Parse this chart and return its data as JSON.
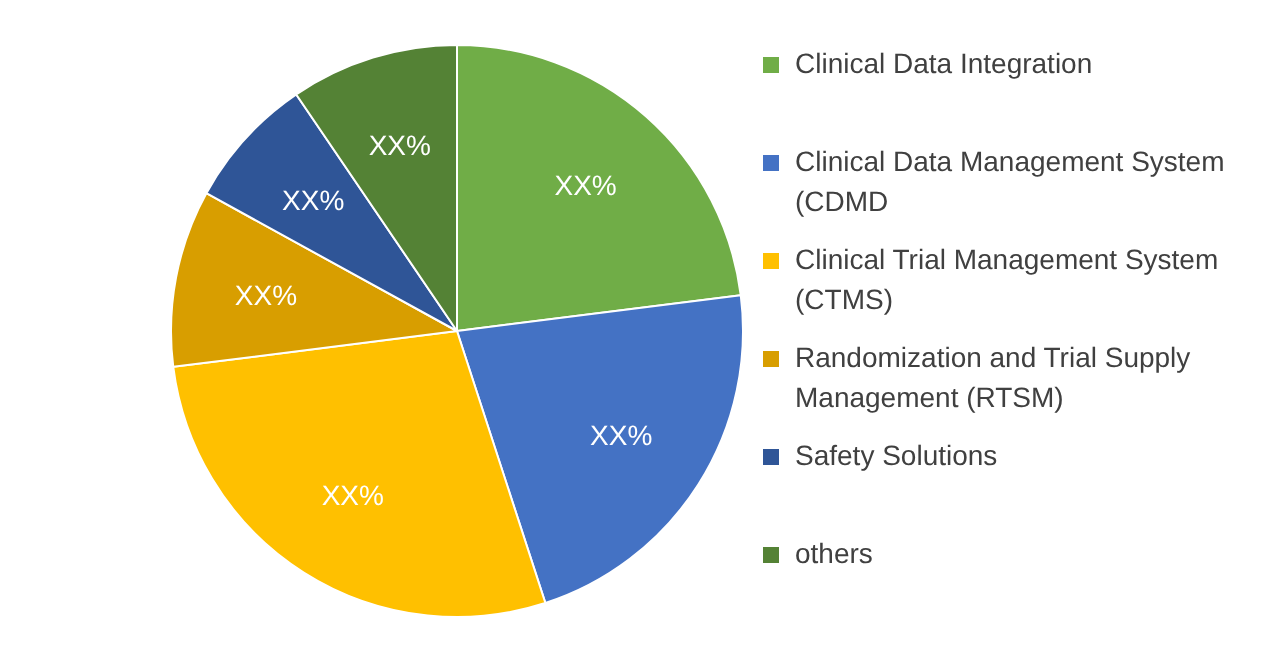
{
  "chart_data": {
    "type": "pie",
    "categories": [
      "Clinical Data Integration",
      "Clinical Data Management System (CDMD",
      "Clinical Trial Management System (CTMS)",
      "Randomization and Trial Supply Management (RTSM)",
      "Safety Solutions",
      "others"
    ],
    "values": [
      23,
      22,
      28,
      10,
      7.5,
      9.5
    ],
    "colors": [
      "#70ad47",
      "#4472c4",
      "#ffc000",
      "#d89e00",
      "#2f5597",
      "#548235"
    ],
    "value_labels": [
      "XX%",
      "XX%",
      "XX%",
      "XX%",
      "XX%",
      "XX%"
    ],
    "legend": "right"
  }
}
